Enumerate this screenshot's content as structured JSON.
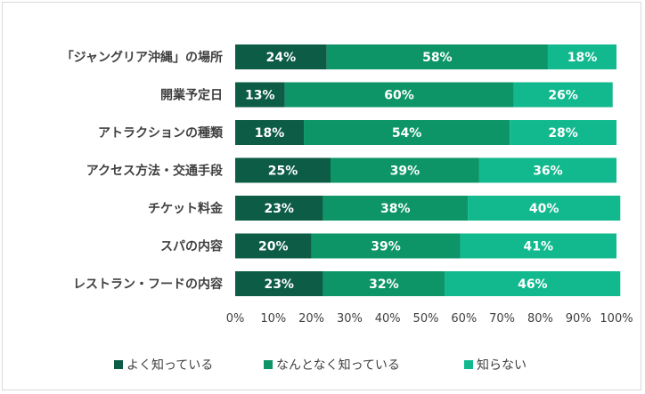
{
  "chart_data": {
    "type": "bar",
    "orientation": "horizontal",
    "stacked": true,
    "categories": [
      "「ジャングリア沖縄」の場所",
      "開業予定日",
      "アトラクションの種類",
      "アクセス方法・交通手段",
      "チケット料金",
      "スパの内容",
      "レストラン・フードの内容"
    ],
    "series": [
      {
        "name": "よく知っている",
        "color": "#0d5c46",
        "values": [
          24,
          13,
          18,
          25,
          23,
          20,
          23
        ]
      },
      {
        "name": "なんとなく知っている",
        "color": "#0d9568",
        "values": [
          58,
          60,
          54,
          39,
          38,
          39,
          32
        ]
      },
      {
        "name": "知らない",
        "color": "#13b98e",
        "values": [
          18,
          26,
          28,
          36,
          40,
          41,
          46
        ]
      }
    ],
    "xlim": [
      0,
      100
    ],
    "xticks": [
      "0%",
      "10%",
      "20%",
      "30%",
      "40%",
      "50%",
      "60%",
      "70%",
      "80%",
      "90%",
      "100%"
    ],
    "value_suffix": "%",
    "legend_position": "bottom",
    "grid": false
  }
}
